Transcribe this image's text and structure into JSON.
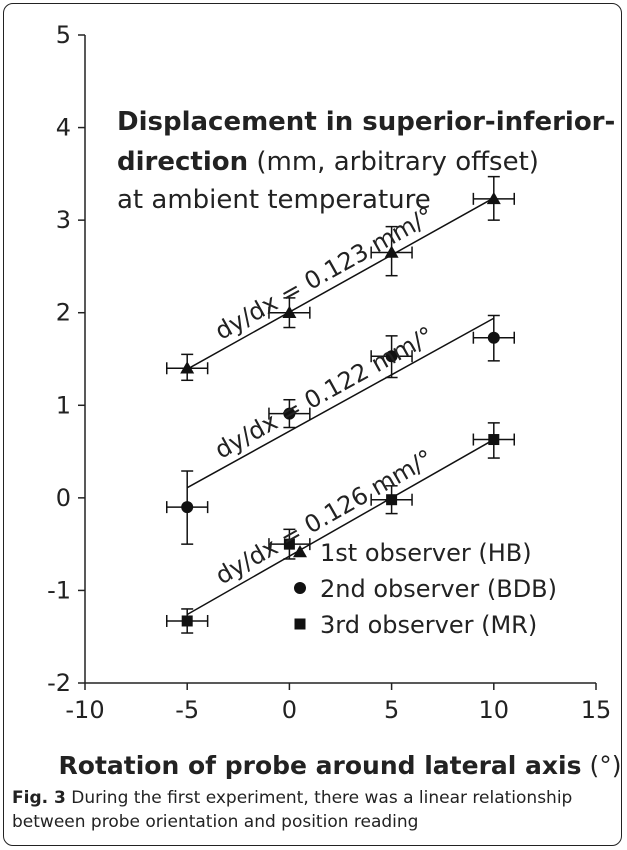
{
  "caption": {
    "label": "Fig. 3",
    "text": " During the first experiment, there was a linear relationship between probe orientation and position reading"
  },
  "chart_data": {
    "type": "scatter",
    "title_bold_1": "Displacement in superior-inferior-",
    "title_bold_2": "direction",
    "title_rest_2": " (mm, arbitrary offset)",
    "title_line_3": "at ambient temperature",
    "xlabel_bold": "Rotation of probe around lateral axis",
    "xlabel_unit": " (°)",
    "xlim": [
      -10,
      15
    ],
    "ylim": [
      -2,
      5
    ],
    "xticks": [
      -10,
      -5,
      0,
      5,
      10,
      15
    ],
    "yticks": [
      -2,
      -1,
      0,
      1,
      2,
      3,
      4,
      5
    ],
    "grid": false,
    "legend_position": "lower-right",
    "x_error": 1,
    "series": [
      {
        "name": "1st observer (HB)",
        "marker": "triangle",
        "x": [
          -5,
          0,
          5,
          10
        ],
        "y": [
          1.4,
          2.0,
          2.65,
          3.23
        ],
        "y_err_low": [
          0.13,
          0.16,
          0.25,
          0.23
        ],
        "y_err_high": [
          0.15,
          0.16,
          0.28,
          0.24
        ],
        "fit": {
          "x": [
            -5,
            10
          ],
          "y": [
            1.39,
            3.24
          ]
        },
        "slope_label": "dy/dx = 0.123 mm/°"
      },
      {
        "name": "2nd observer (BDB)",
        "marker": "circle",
        "x": [
          -5,
          0,
          5,
          10
        ],
        "y": [
          -0.1,
          0.91,
          1.53,
          1.73
        ],
        "y_err_low": [
          0.4,
          0.15,
          0.23,
          0.25
        ],
        "y_err_high": [
          0.39,
          0.15,
          0.22,
          0.24
        ],
        "fit": {
          "x": [
            -5,
            10
          ],
          "y": [
            0.11,
            1.94
          ]
        },
        "slope_label": "dy/dx = 0.122 mm/°"
      },
      {
        "name": "3rd observer (MR)",
        "marker": "square",
        "x": [
          -5,
          0,
          5,
          10
        ],
        "y": [
          -1.33,
          -0.5,
          -0.02,
          0.63
        ],
        "y_err_low": [
          0.13,
          0.16,
          0.15,
          0.2
        ],
        "y_err_high": [
          0.13,
          0.16,
          0.15,
          0.18
        ],
        "fit": {
          "x": [
            -5,
            10
          ],
          "y": [
            -1.26,
            0.63
          ]
        },
        "slope_label": "dy/dx = 0.126 mm/°"
      }
    ]
  }
}
